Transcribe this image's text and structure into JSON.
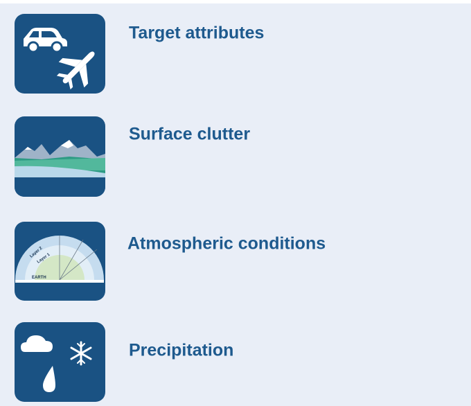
{
  "items": [
    {
      "label": "Target attributes"
    },
    {
      "label": "Surface clutter"
    },
    {
      "label": "Atmospheric conditions",
      "icon_texts": [
        "Layer 2",
        "Layer 1",
        "EARTH"
      ]
    },
    {
      "label": "Precipitation"
    }
  ]
}
